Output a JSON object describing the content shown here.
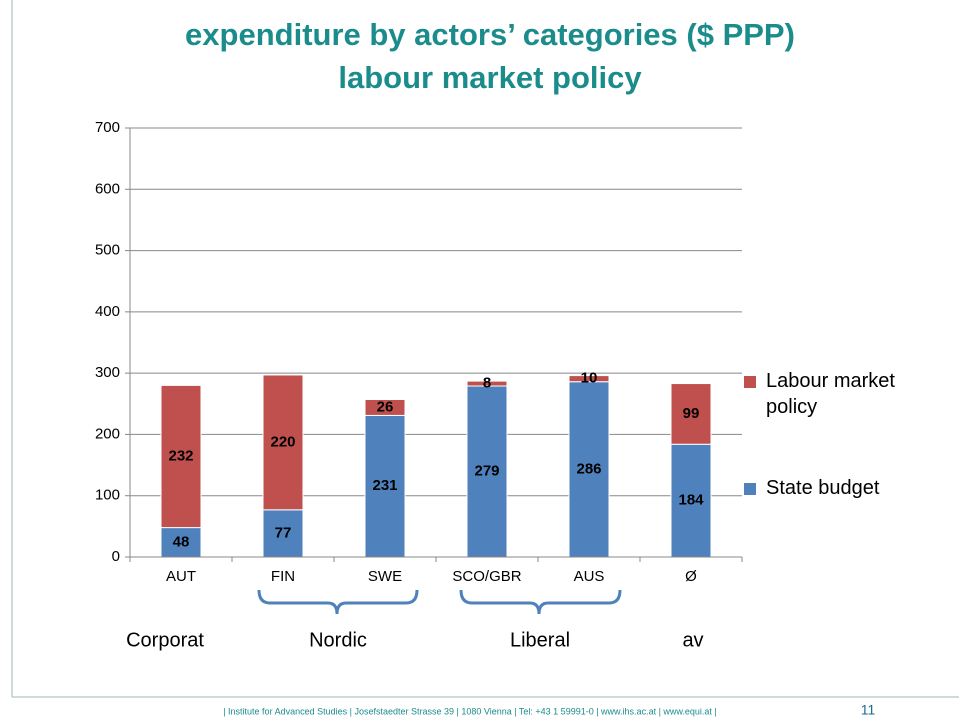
{
  "chart_data": {
    "type": "stacked_bar",
    "title": "expenditure by actors’ categories ($ PPP)",
    "subtitle": "labour market policy",
    "categories": [
      "AUT",
      "FIN",
      "SWE",
      "SCO/GBR",
      "AUS",
      "Ø"
    ],
    "series": [
      {
        "name": "State budget",
        "color": "#4f81bd",
        "values": [
          48,
          77,
          231,
          279,
          286,
          184
        ]
      },
      {
        "name": "Labour market policy",
        "color": "#c0504d",
        "values": [
          232,
          220,
          26,
          8,
          10,
          99
        ]
      }
    ],
    "ylim": [
      0,
      700
    ],
    "yticks": [
      0,
      100,
      200,
      300,
      400,
      500,
      600,
      700
    ],
    "grid": true,
    "legend": "right",
    "groups": [
      "Corporat",
      "Nordic",
      "Liberal",
      "av"
    ]
  },
  "footer": {
    "text": "| Institute for Advanced Studies | Josefstaedter Strasse 39 | 1080 Vienna | Tel: +43 1 59991-0 | www.ihs.ac.at | www.equi.at |",
    "page": "11"
  }
}
